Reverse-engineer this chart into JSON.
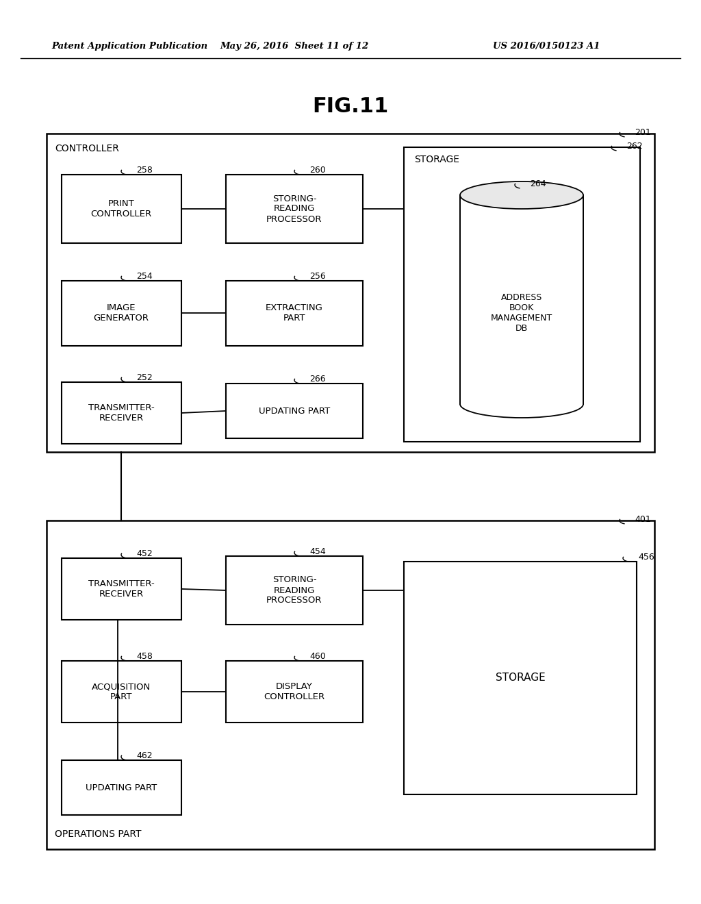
{
  "bg_color": "#ffffff",
  "header_left": "Patent Application Publication",
  "header_center": "May 26, 2016  Sheet 11 of 12",
  "header_right": "US 2016/0150123 A1",
  "fig_title": "FIG.11"
}
